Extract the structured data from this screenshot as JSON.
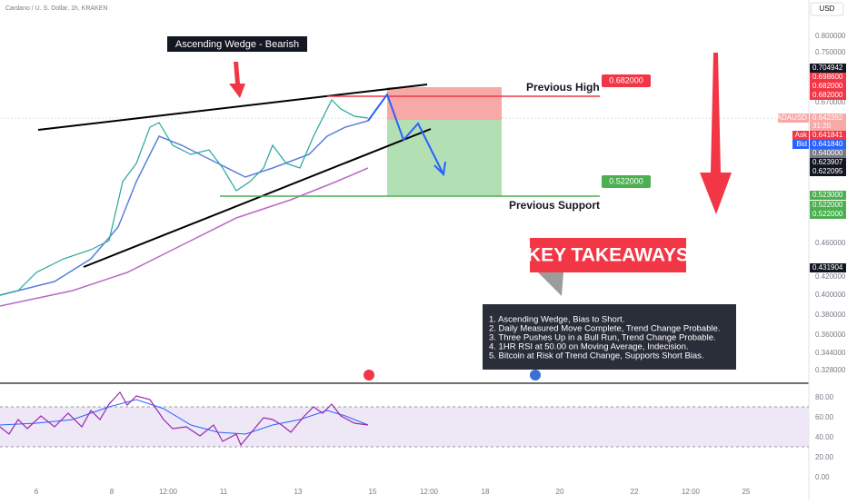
{
  "header": {
    "symbol": "Cardano / U. S. Dollar, 1h, KRAKEN",
    "currency": "USD"
  },
  "price_axis": {
    "ticks": [
      "0.800000",
      "0.750000",
      "0.670000",
      "0.460000",
      "0.420000",
      "0.400000",
      "0.380000",
      "0.360000",
      "0.344000",
      "0.328000"
    ],
    "tags": [
      {
        "text": "0.704942",
        "kind": "dark"
      },
      {
        "text": "0.698600",
        "kind": "red"
      },
      {
        "text": "0.682000",
        "kind": "red"
      },
      {
        "text": "0.682000",
        "kind": "red"
      },
      {
        "text": "0.642392",
        "kind": "pink",
        "name": "ADAUSD",
        "time": "31:20"
      },
      {
        "text": "0.641841",
        "kind": "red",
        "name": "Ask"
      },
      {
        "text": "0.641840",
        "kind": "blue",
        "name": "Bid"
      },
      {
        "text": "0.640000",
        "kind": "grey"
      },
      {
        "text": "0.623907",
        "kind": "dark"
      },
      {
        "text": "0.622095",
        "kind": "dark"
      },
      {
        "text": "0.523000",
        "kind": "green"
      },
      {
        "text": "0.522000",
        "kind": "green"
      },
      {
        "text": "0.522000",
        "kind": "green"
      },
      {
        "text": "0.431904",
        "kind": "dark"
      }
    ]
  },
  "rsi_axis": {
    "ticks": [
      "80.00",
      "60.00",
      "40.00",
      "20.00",
      "0.00"
    ]
  },
  "time_axis": {
    "ticks": [
      "6",
      "8",
      "12:00",
      "11",
      "13",
      "15",
      "12:00",
      "18",
      "20",
      "22",
      "12:00",
      "25"
    ]
  },
  "annotations": {
    "pattern": "Ascending Wedge - Bearish",
    "previous_high": "Previous High",
    "previous_high_price": "0.682000",
    "previous_support": "Previous Support",
    "previous_support_price": "0.522000",
    "key_takeaways": "KEY TAKEAWAYS"
  },
  "takeaways": [
    "1. Ascending Wedge, Bias to Short.",
    "2. Daily Measured Move Complete, Trend Change Probable.",
    "3. Three Pushes Up in a Bull Run, Trend Change Probable.",
    "4. 1HR RSI at 50.00 on Moving Average, Indecision.",
    "5. Bitcoin at Risk of Trend Change, Supports Short Bias."
  ]
}
